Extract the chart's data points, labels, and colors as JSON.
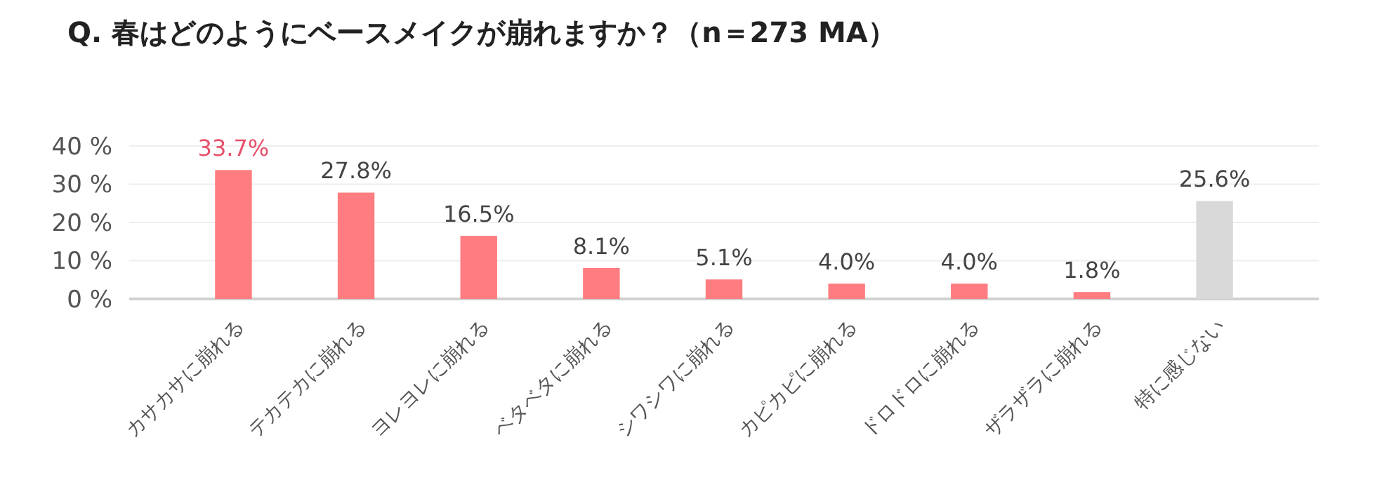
{
  "chart_data": {
    "type": "bar",
    "title": "Q. 春はどのようにベースメイクが崩れますか？（n＝273 MA）",
    "categories": [
      "カサカサに崩れる",
      "テカテカに崩れる",
      "ヨレヨレに崩れる",
      "ベタベタに崩れる",
      "シワシワに崩れる",
      "カピカピに崩れる",
      "ドロドロに崩れる",
      "ザラザラに崩れる",
      "特に感じない"
    ],
    "values": [
      33.7,
      27.8,
      16.5,
      8.1,
      5.1,
      4.0,
      4.0,
      1.8,
      25.6
    ],
    "colors": [
      "#ff7c80",
      "#ff7c80",
      "#ff7c80",
      "#ff7c80",
      "#ff7c80",
      "#ff7c80",
      "#ff7c80",
      "#ff7c80",
      "#d9d9d9"
    ],
    "value_labels": [
      "33.7%",
      "27.8%",
      "16.5%",
      "8.1%",
      "5.1%",
      "4.0%",
      "4.0%",
      "1.8%",
      "25.6%"
    ],
    "ylim": [
      0,
      40
    ],
    "yticks": [
      {
        "value": 0,
        "label": "0 %"
      },
      {
        "value": 10,
        "label": "10 %"
      },
      {
        "value": 20,
        "label": "20 %"
      },
      {
        "value": 30,
        "label": "30 %"
      },
      {
        "value": 40,
        "label": "40 %"
      }
    ],
    "grid": "y"
  }
}
